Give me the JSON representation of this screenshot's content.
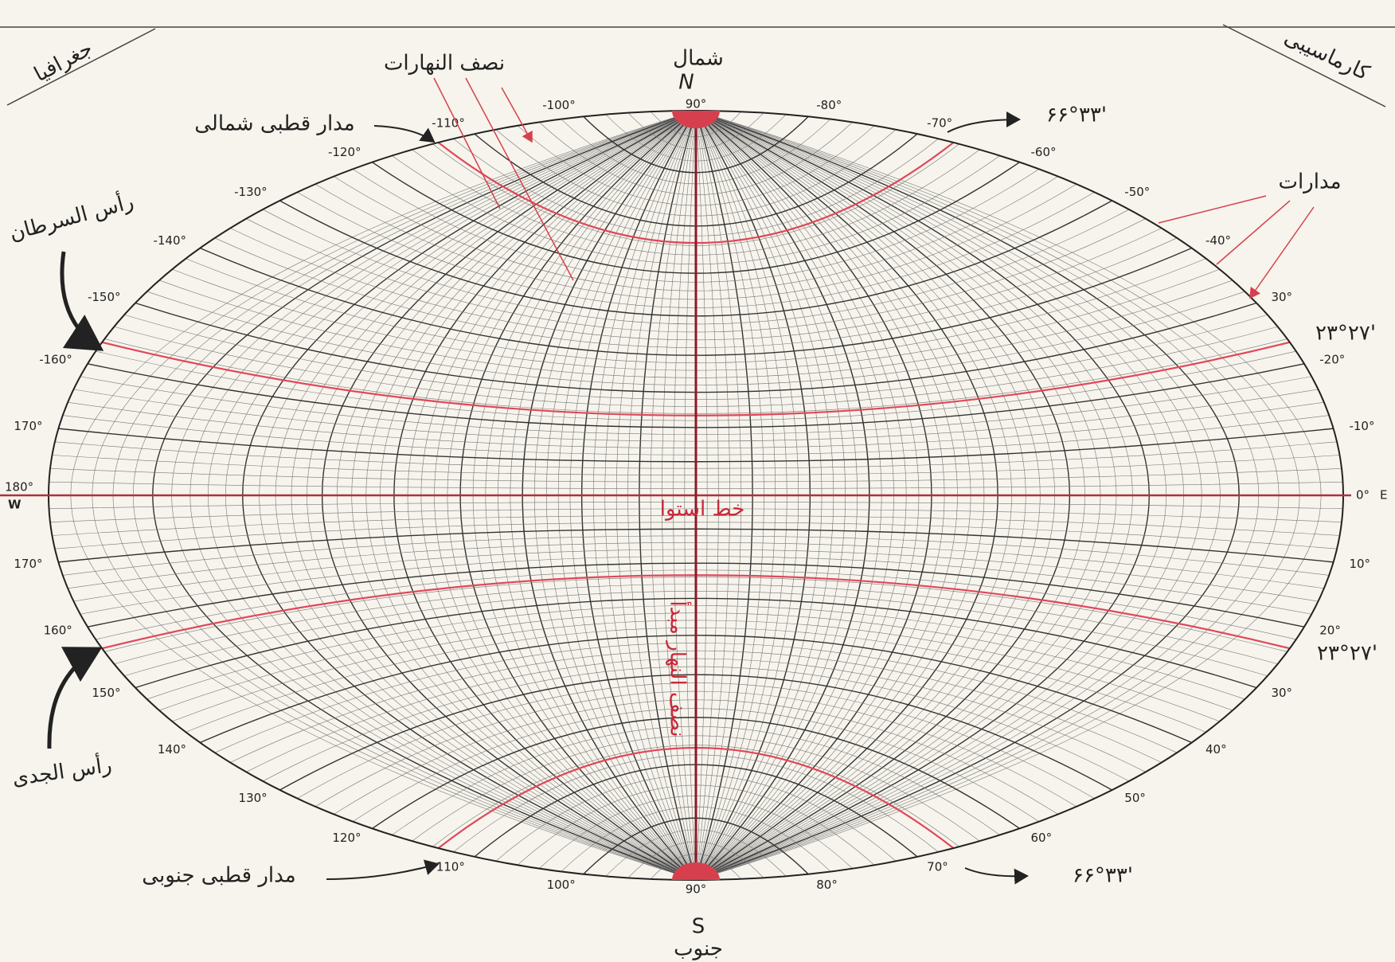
{
  "header": {
    "left": "جغرافیا",
    "right": "کارماسیبی"
  },
  "north": {
    "word": "شمال",
    "letter": "N",
    "degree": "90°"
  },
  "south": {
    "word": "جنوب",
    "letter": "S",
    "degree": "90°"
  },
  "west": {
    "degree": "180°",
    "letter": "W"
  },
  "east": {
    "degree": "0°",
    "letter": "E"
  },
  "left_upper_labels": [
    "-100°",
    "-110°",
    "-120°",
    "-130°",
    "-140°",
    "-150°",
    "-160°",
    "170°"
  ],
  "left_lower_labels": [
    "170°",
    "160°",
    "150°",
    "140°",
    "130°",
    "120°",
    "110°",
    "100°"
  ],
  "right_upper_labels": [
    "-80°",
    "-70°",
    "-60°",
    "-50°",
    "-40°",
    "30°",
    "-20°",
    "-10°"
  ],
  "right_lower_labels": [
    "10°",
    "20°",
    "30°",
    "40°",
    "50°",
    "60°",
    "70°",
    "80°"
  ],
  "annotations": {
    "meridians": "نصف النهارات",
    "arctic_circle": "مدار قطبی شمالی",
    "antarctic_circle": "مدار قطبی جنوبی",
    "parallels": "مدارات",
    "tropic_cancer": "رأس السرطان",
    "tropic_capricorn": "رأس الجدی",
    "equator": "خط استوا",
    "prime_meridian": "نصف النهار مبدأ",
    "arctic_value": "۶۶°۳۳'",
    "antarctic_value": "۶۶°۳۳'",
    "cancer_value": "۲۳°۲۷'",
    "capricorn_value": "۲۳°۲۷'"
  }
}
